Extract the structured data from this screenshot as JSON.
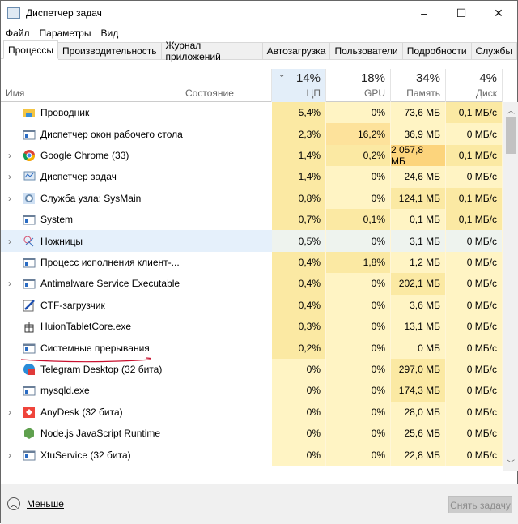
{
  "window": {
    "title": "Диспетчер задач",
    "minimize": "–",
    "maximize": "☐",
    "close": "✕"
  },
  "menu": [
    "Файл",
    "Параметры",
    "Вид"
  ],
  "tabs": [
    "Процессы",
    "Производительность",
    "Журнал приложений",
    "Автозагрузка",
    "Пользователи",
    "Подробности",
    "Службы"
  ],
  "active_tab": 0,
  "columns": {
    "name": "Имя",
    "status": "Состояние",
    "cpu": {
      "label": "ЦП",
      "total": "14%"
    },
    "gpu": {
      "label": "GPU",
      "total": "18%"
    },
    "mem": {
      "label": "Память",
      "total": "34%"
    },
    "disk": {
      "label": "Диск",
      "total": "4%"
    }
  },
  "sorted_by": "cpu",
  "processes": [
    {
      "name": "Проводник",
      "icon": "folder-icon",
      "expand": false,
      "cpu": "5,4%",
      "gpu": "0%",
      "mem": "73,6 МБ",
      "disk": "0,1 МБ/с"
    },
    {
      "name": "Диспетчер окон рабочего стола",
      "icon": "window-icon",
      "expand": false,
      "cpu": "2,3%",
      "gpu": "16,2%",
      "mem": "36,9 МБ",
      "disk": "0 МБ/с"
    },
    {
      "name": "Google Chrome (33)",
      "icon": "chrome-icon",
      "expand": true,
      "cpu": "1,4%",
      "gpu": "0,2%",
      "mem": "2 057,8 МБ",
      "disk": "0,1 МБ/с"
    },
    {
      "name": "Диспетчер задач",
      "icon": "task-manager-icon",
      "expand": true,
      "cpu": "1,4%",
      "gpu": "0%",
      "mem": "24,6 МБ",
      "disk": "0 МБ/с"
    },
    {
      "name": "Служба узла: SysMain",
      "icon": "gear-icon",
      "expand": true,
      "cpu": "0,8%",
      "gpu": "0%",
      "mem": "124,1 МБ",
      "disk": "0,1 МБ/с"
    },
    {
      "name": "System",
      "icon": "window-icon",
      "expand": false,
      "cpu": "0,7%",
      "gpu": "0,1%",
      "mem": "0,1 МБ",
      "disk": "0,1 МБ/с"
    },
    {
      "name": "Ножницы",
      "icon": "scissors-icon",
      "expand": true,
      "selected": true,
      "cpu": "0,5%",
      "gpu": "0%",
      "mem": "3,1 МБ",
      "disk": "0 МБ/с"
    },
    {
      "name": "Процесс исполнения клиент-...",
      "icon": "window-icon",
      "expand": false,
      "cpu": "0,4%",
      "gpu": "1,8%",
      "mem": "1,2 МБ",
      "disk": "0 МБ/с"
    },
    {
      "name": "Antimalware Service Executable",
      "icon": "window-icon",
      "expand": true,
      "cpu": "0,4%",
      "gpu": "0%",
      "mem": "202,1 МБ",
      "disk": "0 МБ/с"
    },
    {
      "name": "CTF-загрузчик",
      "icon": "pen-icon",
      "expand": false,
      "cpu": "0,4%",
      "gpu": "0%",
      "mem": "3,6 МБ",
      "disk": "0 МБ/с"
    },
    {
      "name": "HuionTabletCore.exe",
      "icon": "gift-icon",
      "expand": false,
      "cpu": "0,3%",
      "gpu": "0%",
      "mem": "13,1 МБ",
      "disk": "0 МБ/с"
    },
    {
      "name": "Системные прерывания",
      "icon": "window-icon",
      "expand": false,
      "cpu": "0,2%",
      "gpu": "0%",
      "mem": "0 МБ",
      "disk": "0 МБ/с"
    },
    {
      "name": "Telegram Desktop (32 бита)",
      "icon": "telegram-icon",
      "expand": false,
      "cpu": "0%",
      "gpu": "0%",
      "mem": "297,0 МБ",
      "disk": "0 МБ/с"
    },
    {
      "name": "mysqld.exe",
      "icon": "window-icon",
      "expand": false,
      "cpu": "0%",
      "gpu": "0%",
      "mem": "174,3 МБ",
      "disk": "0 МБ/с"
    },
    {
      "name": "AnyDesk (32 бита)",
      "icon": "anydesk-icon",
      "expand": true,
      "cpu": "0%",
      "gpu": "0%",
      "mem": "28,0 МБ",
      "disk": "0 МБ/с"
    },
    {
      "name": "Node.js JavaScript Runtime",
      "icon": "nodejs-icon",
      "expand": false,
      "cpu": "0%",
      "gpu": "0%",
      "mem": "25,6 МБ",
      "disk": "0 МБ/с"
    },
    {
      "name": "XtuService (32 бита)",
      "icon": "window-icon",
      "expand": true,
      "cpu": "0%",
      "gpu": "0%",
      "mem": "22,8 МБ",
      "disk": "0 МБ/с"
    }
  ],
  "footer": {
    "less": "Меньше",
    "end_task": "Снять задачу"
  },
  "colors": {
    "heat_low": "#fff4c4",
    "heat_mid": "#fbe9a3",
    "heat_high": "#fde29b",
    "heat_max": "#fcd47c",
    "selection": "#e5f0fb",
    "sorted_header": "#e3eef9",
    "annotation_underline": "#c8102e"
  }
}
